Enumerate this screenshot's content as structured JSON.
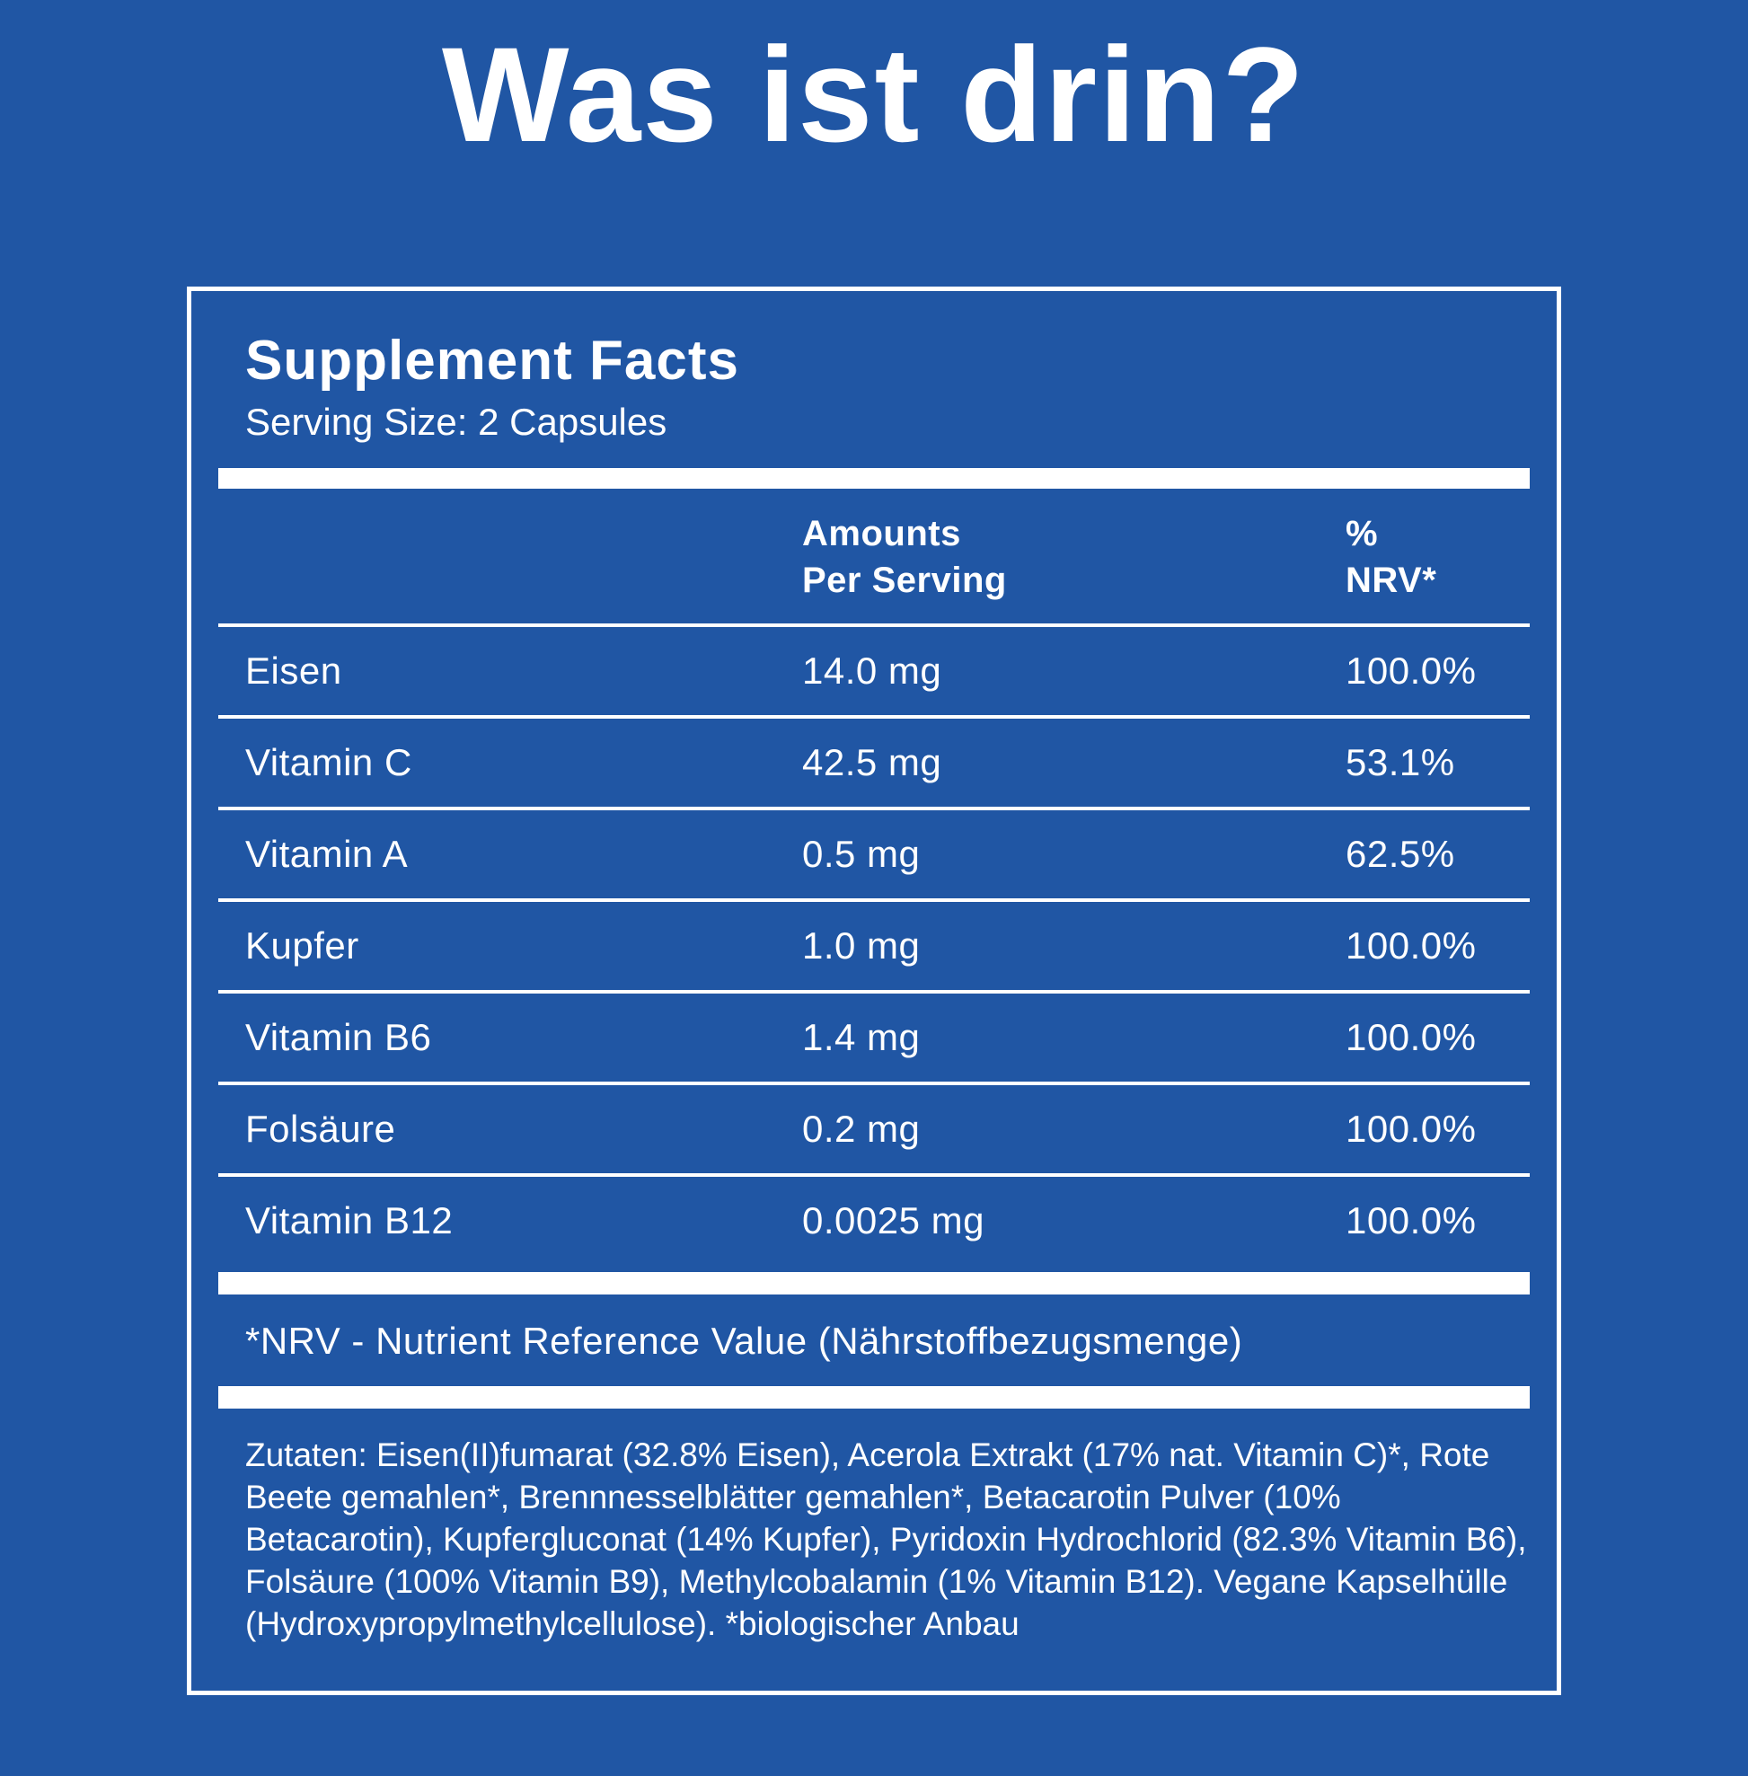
{
  "theme": {
    "bg": "#2056A4",
    "fg": "#FFFFFF"
  },
  "page": {
    "title": "Was ist drin?"
  },
  "panel": {
    "heading": "Supplement Facts",
    "serving_size": "Serving Size: 2 Capsules",
    "table": {
      "columns": {
        "nutrient": "",
        "amount": "Amounts\nPer Serving",
        "nrv": "%\nNRV*"
      },
      "rows": [
        {
          "name": "Eisen",
          "amount": "14.0 mg",
          "nrv": "100.0%"
        },
        {
          "name": "Vitamin C",
          "amount": "42.5 mg",
          "nrv": "53.1%"
        },
        {
          "name": "Vitamin A",
          "amount": "0.5 mg",
          "nrv": "62.5%"
        },
        {
          "name": "Kupfer",
          "amount": "1.0 mg",
          "nrv": "100.0%"
        },
        {
          "name": "Vitamin B6",
          "amount": "1.4 mg",
          "nrv": "100.0%"
        },
        {
          "name": "Folsäure",
          "amount": "0.2 mg",
          "nrv": "100.0%"
        },
        {
          "name": "Vitamin B12",
          "amount": "0.0025 mg",
          "nrv": "100.0%"
        }
      ]
    },
    "footnote": "*NRV - Nutrient Reference Value (Nährstoffbezugsmenge)",
    "ingredients": "Zutaten: Eisen(II)fumarat (32.8% Eisen), Acerola Extrakt (17% nat. Vitamin C)*, Rote Beete gemahlen*, Brennnesselblätter gemahlen*, Betacarotin Pulver (10% Betacarotin), Kupfergluconat (14% Kupfer), Pyridoxin Hydrochlorid (82.3% Vitamin B6), Folsäure (100% Vitamin B9), Methylcobalamin (1% Vitamin B12). Vegane Kapselhülle (Hydroxypropylmethylcellulose). *biologischer Anbau"
  }
}
